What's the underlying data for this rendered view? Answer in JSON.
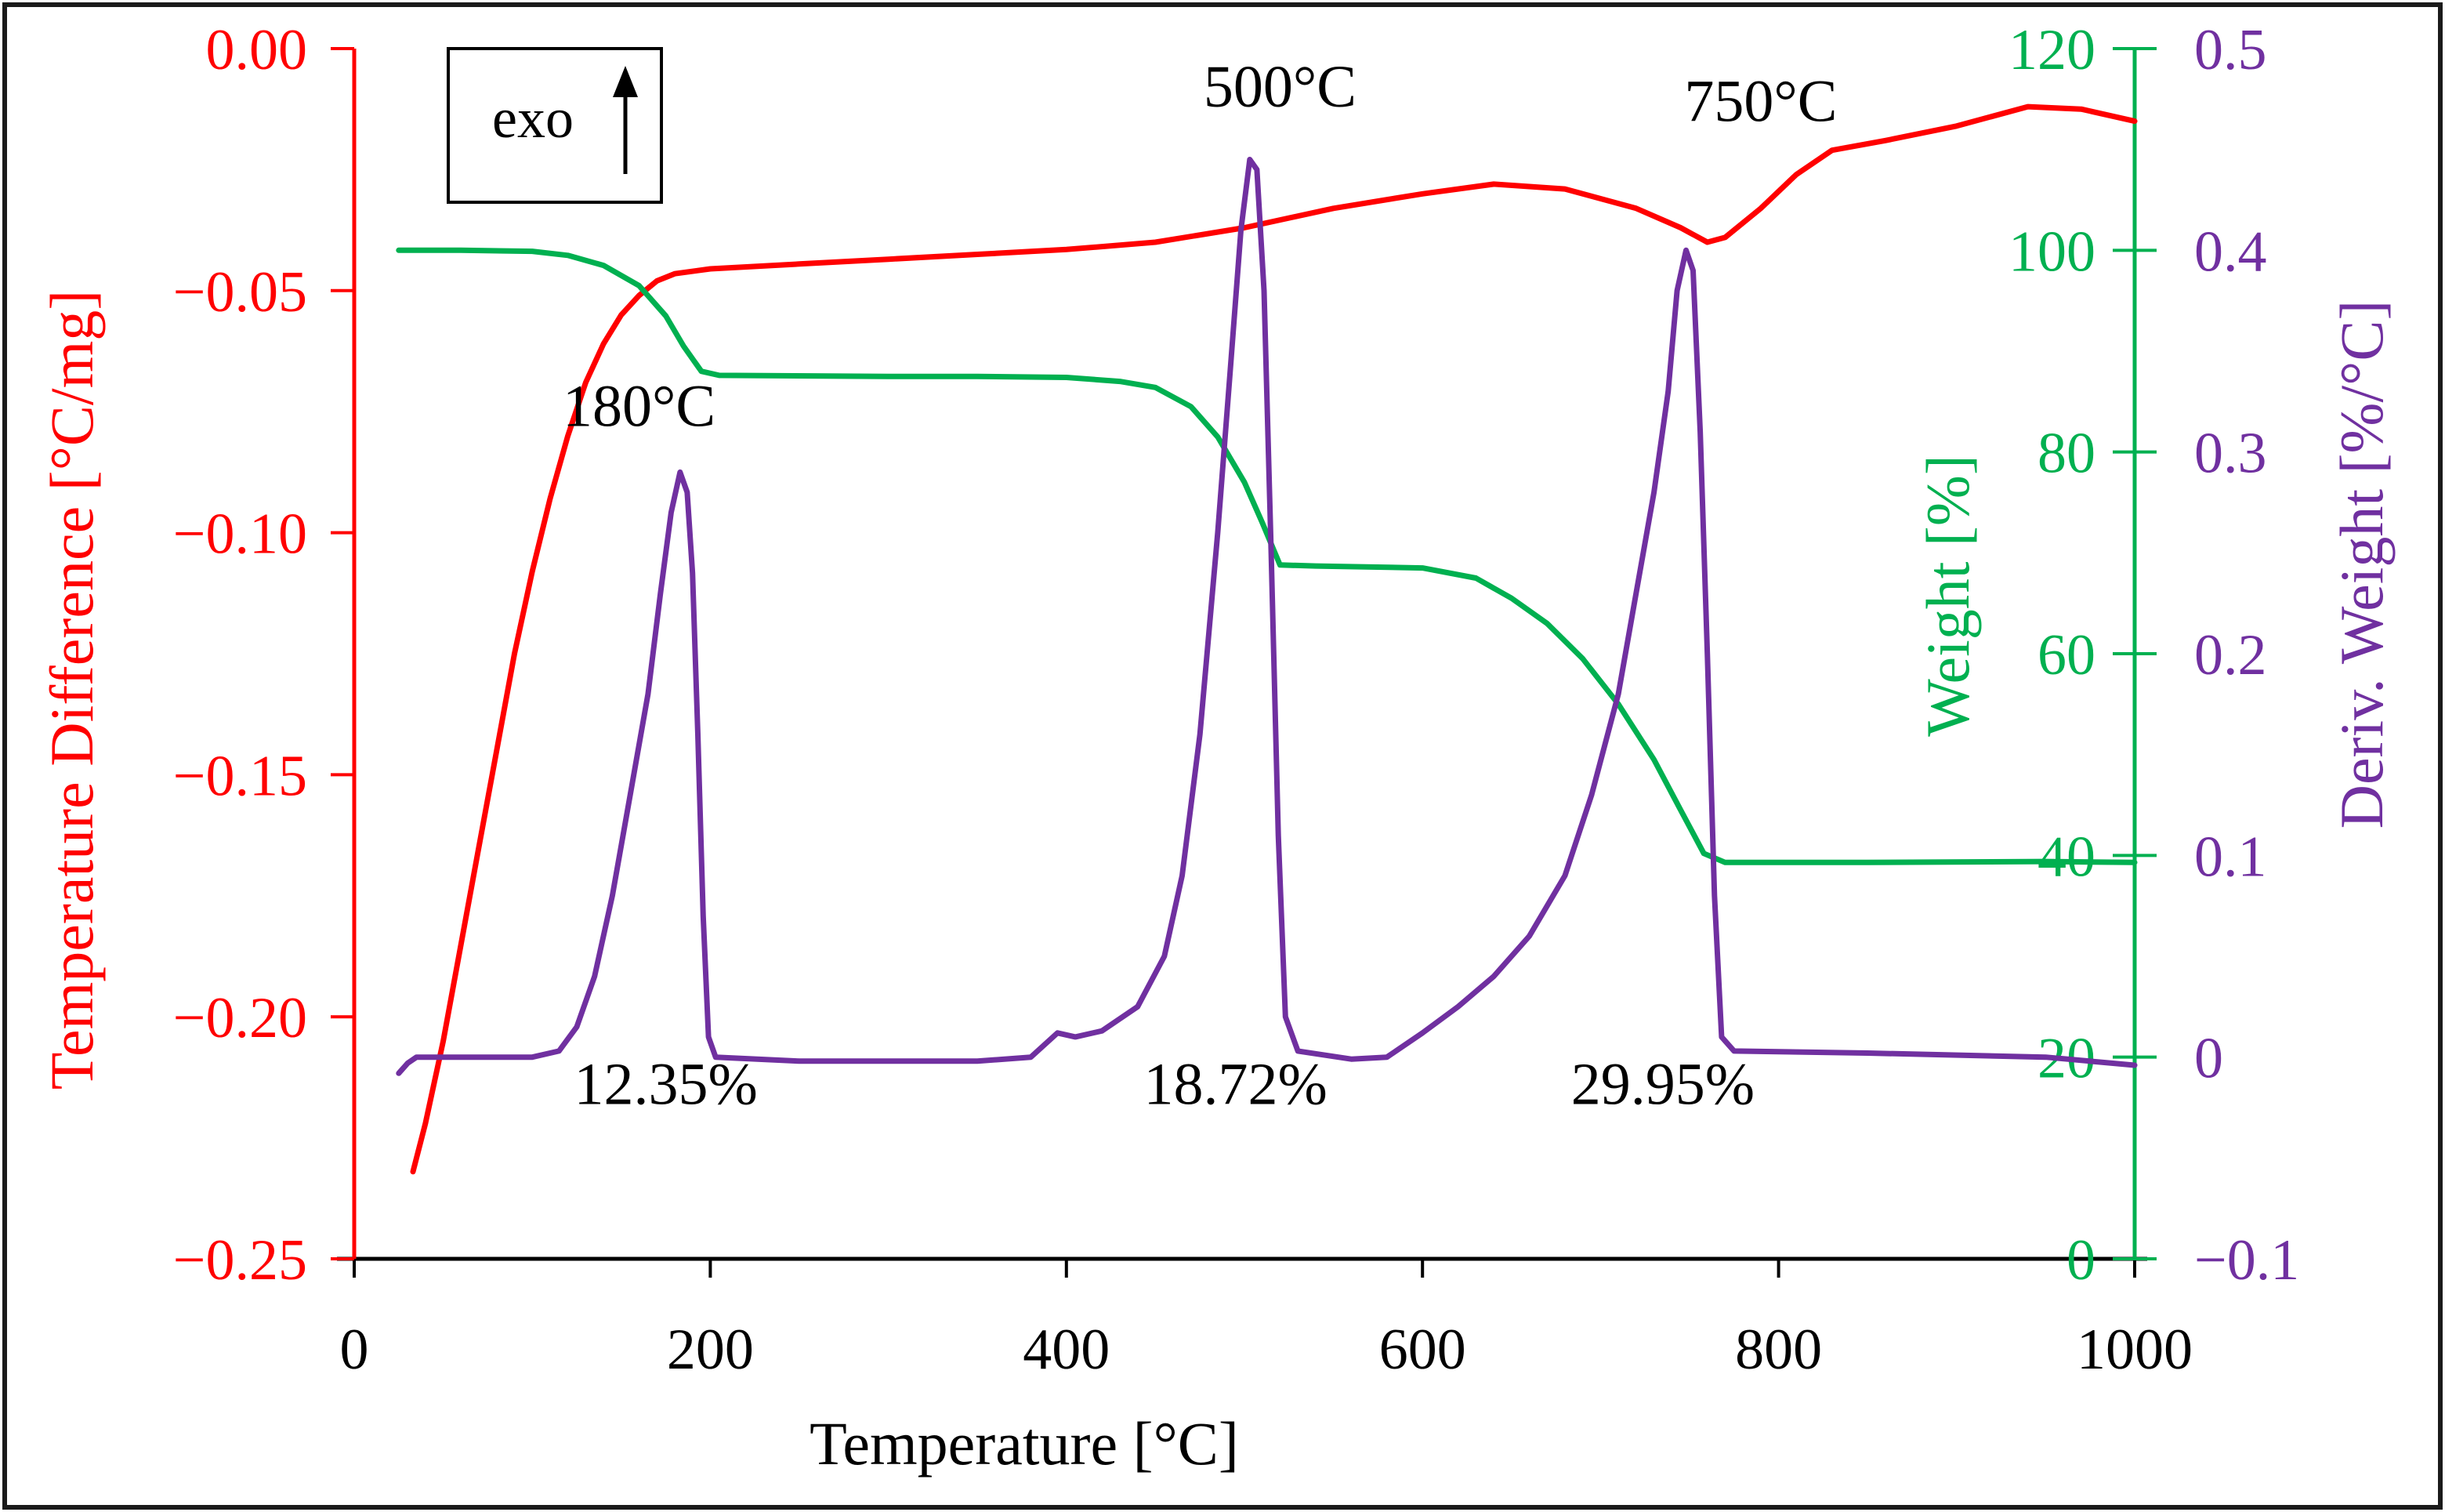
{
  "chart_data": {
    "type": "line",
    "x_axis": {
      "label": "Temperature [°C]",
      "min": 0,
      "max": 1000,
      "ticks": [
        "0",
        "200",
        "400",
        "600",
        "800",
        "1000"
      ],
      "tick_values": [
        0,
        200,
        400,
        600,
        800,
        1000
      ]
    },
    "y_axis_left": {
      "label": "Temperature Difference [°C/mg]",
      "min": -0.25,
      "max": 0.0,
      "ticks": [
        "0.00",
        "−0.05",
        "−0.10",
        "−0.15",
        "−0.20",
        "−0.25"
      ],
      "tick_values": [
        0.0,
        -0.05,
        -0.1,
        -0.15,
        -0.2,
        -0.25
      ],
      "color": "#ff0000"
    },
    "y_axis_right1": {
      "label": "Weight [%]",
      "min": 0,
      "max": 120,
      "ticks": [
        "120",
        "100",
        "80",
        "60",
        "40",
        "20",
        "0"
      ],
      "tick_values": [
        120,
        100,
        80,
        60,
        40,
        20,
        0
      ],
      "color": "#00b050"
    },
    "y_axis_right2": {
      "label": "Deriv. Weight [%/°C]",
      "min": -0.1,
      "max": 0.5,
      "ticks": [
        "0.5",
        "0.4",
        "0.3",
        "0.2",
        "0.1",
        "0",
        "−0.1"
      ],
      "tick_values": [
        0.5,
        0.4,
        0.3,
        0.2,
        0.1,
        0,
        -0.1
      ],
      "color": "#7030a0"
    },
    "legend_box": {
      "text": "exo",
      "arrow": "up-arrow"
    },
    "series": [
      {
        "name": "Temperature Difference",
        "axis": "left",
        "color": "#ff0000",
        "points": [
          [
            33,
            -0.232
          ],
          [
            40,
            -0.222
          ],
          [
            50,
            -0.205
          ],
          [
            60,
            -0.185
          ],
          [
            70,
            -0.165
          ],
          [
            80,
            -0.145
          ],
          [
            90,
            -0.125
          ],
          [
            100,
            -0.108
          ],
          [
            110,
            -0.093
          ],
          [
            120,
            -0.08
          ],
          [
            130,
            -0.069
          ],
          [
            140,
            -0.061
          ],
          [
            150,
            -0.055
          ],
          [
            160,
            -0.051
          ],
          [
            170,
            -0.048
          ],
          [
            180,
            -0.0465
          ],
          [
            200,
            -0.0455
          ],
          [
            250,
            -0.0445
          ],
          [
            300,
            -0.0435
          ],
          [
            350,
            -0.0425
          ],
          [
            400,
            -0.0415
          ],
          [
            450,
            -0.04
          ],
          [
            500,
            -0.037
          ],
          [
            550,
            -0.033
          ],
          [
            600,
            -0.03
          ],
          [
            640,
            -0.028
          ],
          [
            680,
            -0.029
          ],
          [
            720,
            -0.033
          ],
          [
            745,
            -0.037
          ],
          [
            760,
            -0.04
          ],
          [
            770,
            -0.039
          ],
          [
            790,
            -0.033
          ],
          [
            810,
            -0.026
          ],
          [
            830,
            -0.021
          ],
          [
            860,
            -0.019
          ],
          [
            900,
            -0.016
          ],
          [
            940,
            -0.012
          ],
          [
            970,
            -0.0125
          ],
          [
            1000,
            -0.015
          ]
        ]
      },
      {
        "name": "Weight",
        "axis": "right1",
        "color": "#00b050",
        "points": [
          [
            25,
            100.0
          ],
          [
            60,
            100.0
          ],
          [
            100,
            99.9
          ],
          [
            120,
            99.5
          ],
          [
            140,
            98.5
          ],
          [
            160,
            96.5
          ],
          [
            175,
            93.5
          ],
          [
            185,
            90.5
          ],
          [
            195,
            88.0
          ],
          [
            205,
            87.6
          ],
          [
            300,
            87.5
          ],
          [
            350,
            87.5
          ],
          [
            400,
            87.4
          ],
          [
            430,
            87.0
          ],
          [
            450,
            86.4
          ],
          [
            470,
            84.5
          ],
          [
            485,
            81.5
          ],
          [
            500,
            77.0
          ],
          [
            510,
            73.0
          ],
          [
            520,
            68.8
          ],
          [
            540,
            68.7
          ],
          [
            600,
            68.5
          ],
          [
            630,
            67.5
          ],
          [
            650,
            65.5
          ],
          [
            670,
            63.0
          ],
          [
            690,
            59.5
          ],
          [
            710,
            55.0
          ],
          [
            730,
            49.5
          ],
          [
            745,
            44.5
          ],
          [
            758,
            40.2
          ],
          [
            770,
            39.3
          ],
          [
            850,
            39.3
          ],
          [
            950,
            39.4
          ],
          [
            1000,
            39.3
          ]
        ]
      },
      {
        "name": "Deriv. Weight",
        "axis": "right2",
        "color": "#7030a0",
        "points": [
          [
            25,
            -0.008
          ],
          [
            30,
            -0.003
          ],
          [
            35,
            0.0
          ],
          [
            60,
            0.0
          ],
          [
            100,
            0.0
          ],
          [
            115,
            0.003
          ],
          [
            125,
            0.015
          ],
          [
            135,
            0.04
          ],
          [
            145,
            0.08
          ],
          [
            155,
            0.13
          ],
          [
            165,
            0.18
          ],
          [
            172,
            0.23
          ],
          [
            178,
            0.27
          ],
          [
            183,
            0.29
          ],
          [
            187,
            0.28
          ],
          [
            190,
            0.24
          ],
          [
            193,
            0.16
          ],
          [
            196,
            0.07
          ],
          [
            199,
            0.01
          ],
          [
            203,
            0.0
          ],
          [
            250,
            -0.002
          ],
          [
            300,
            -0.002
          ],
          [
            350,
            -0.002
          ],
          [
            380,
            0.0
          ],
          [
            395,
            0.012
          ],
          [
            405,
            0.01
          ],
          [
            420,
            0.013
          ],
          [
            440,
            0.025
          ],
          [
            455,
            0.05
          ],
          [
            465,
            0.09
          ],
          [
            475,
            0.16
          ],
          [
            485,
            0.26
          ],
          [
            492,
            0.34
          ],
          [
            498,
            0.41
          ],
          [
            503,
            0.445
          ],
          [
            507,
            0.44
          ],
          [
            511,
            0.38
          ],
          [
            515,
            0.25
          ],
          [
            519,
            0.11
          ],
          [
            523,
            0.02
          ],
          [
            530,
            0.003
          ],
          [
            560,
            -0.001
          ],
          [
            580,
            0.0
          ],
          [
            600,
            0.012
          ],
          [
            620,
            0.025
          ],
          [
            640,
            0.04
          ],
          [
            660,
            0.06
          ],
          [
            680,
            0.09
          ],
          [
            695,
            0.13
          ],
          [
            710,
            0.18
          ],
          [
            720,
            0.23
          ],
          [
            730,
            0.28
          ],
          [
            738,
            0.33
          ],
          [
            743,
            0.38
          ],
          [
            748,
            0.4
          ],
          [
            752,
            0.39
          ],
          [
            756,
            0.31
          ],
          [
            760,
            0.2
          ],
          [
            764,
            0.08
          ],
          [
            768,
            0.01
          ],
          [
            775,
            0.003
          ],
          [
            850,
            0.002
          ],
          [
            950,
            0.0
          ],
          [
            1000,
            -0.004
          ]
        ]
      }
    ],
    "annotations": [
      {
        "text": "180°C",
        "x": 160,
        "left_y": -0.078
      },
      {
        "text": "500°C",
        "x": 520,
        "left_y": -0.012
      },
      {
        "text": "750°C",
        "x": 790,
        "left_y": -0.015
      },
      {
        "text": "12.35%",
        "x": 175,
        "left_y": -0.218
      },
      {
        "text": "18.72%",
        "x": 495,
        "left_y": -0.218
      },
      {
        "text": "29.95%",
        "x": 735,
        "left_y": -0.218
      }
    ]
  }
}
